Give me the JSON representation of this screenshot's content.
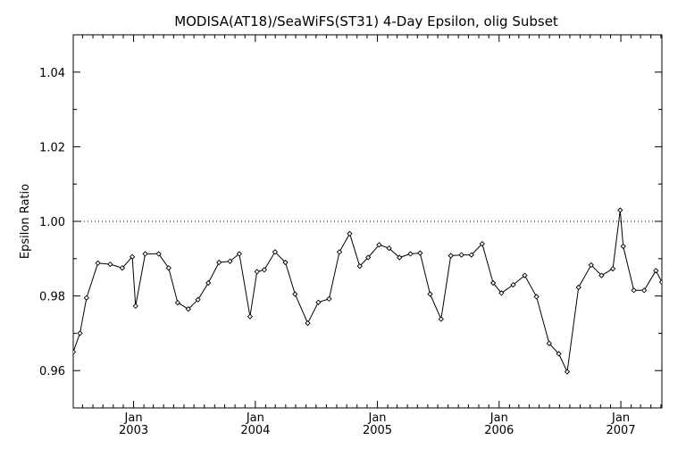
{
  "chart_data": {
    "type": "line",
    "title": "MODISA(AT18)/SeaWiFS(ST31) 4-Day Epsilon, olig Subset",
    "xlabel": "",
    "ylabel": "Epsilon Ratio",
    "x_start": "2002-07-04",
    "x_end": "2007-05-04",
    "ylim": [
      0.95,
      1.05
    ],
    "y_ticks": [
      0.96,
      0.98,
      1.0,
      1.02,
      1.04
    ],
    "y_tick_labels": [
      "0.96",
      "0.98",
      "1.00",
      "1.02",
      "1.04"
    ],
    "x_ticks": [
      {
        "date": "2003-01-01",
        "month": "Jan",
        "year": "2003"
      },
      {
        "date": "2004-01-01",
        "month": "Jan",
        "year": "2004"
      },
      {
        "date": "2005-01-01",
        "month": "Jan",
        "year": "2005"
      },
      {
        "date": "2006-01-01",
        "month": "Jan",
        "year": "2006"
      },
      {
        "date": "2007-01-01",
        "month": "Jan",
        "year": "2007"
      }
    ],
    "reference_line": {
      "y": 1.0,
      "style": "dotted"
    },
    "marker": "diamond",
    "series": [
      {
        "x": [
          "2002-07-04",
          "2002-07-24",
          "2002-08-13",
          "2002-09-16",
          "2002-10-23",
          "2002-11-28",
          "2002-12-28",
          "2003-01-07",
          "2003-02-05",
          "2003-03-17",
          "2003-04-16",
          "2003-05-13",
          "2003-06-14",
          "2003-07-13",
          "2003-08-13",
          "2003-09-14",
          "2003-10-17",
          "2003-11-14",
          "2003-12-16",
          "2004-01-06",
          "2004-01-28",
          "2004-02-29",
          "2004-03-31",
          "2004-04-29",
          "2004-06-06",
          "2004-07-08",
          "2004-08-09",
          "2004-09-09",
          "2004-10-10",
          "2004-11-09",
          "2004-12-04",
          "2005-01-06",
          "2005-02-05",
          "2005-03-08",
          "2005-04-10",
          "2005-05-09",
          "2005-06-08",
          "2005-07-11",
          "2005-08-09",
          "2005-09-10",
          "2005-10-10",
          "2005-11-11",
          "2005-12-14",
          "2006-01-08",
          "2006-02-12",
          "2006-03-19",
          "2006-04-23",
          "2006-05-31",
          "2006-06-29",
          "2006-07-24",
          "2006-08-27",
          "2006-10-04",
          "2006-11-04",
          "2006-12-08",
          "2006-12-30",
          "2007-01-08",
          "2007-02-09",
          "2007-03-12",
          "2007-04-16",
          "2007-05-04"
        ],
        "y": [
          0.965,
          0.97,
          0.9795,
          0.9888,
          0.9885,
          0.9875,
          0.9905,
          0.9773,
          0.9913,
          0.9913,
          0.9875,
          0.9782,
          0.9765,
          0.979,
          0.9835,
          0.989,
          0.9893,
          0.9913,
          0.9745,
          0.9865,
          0.987,
          0.9918,
          0.989,
          0.9805,
          0.9727,
          0.9783,
          0.9792,
          0.9918,
          0.9967,
          0.988,
          0.9903,
          0.9937,
          0.9928,
          0.9903,
          0.9913,
          0.9915,
          0.9805,
          0.9738,
          0.9908,
          0.991,
          0.991,
          0.994,
          0.9835,
          0.9808,
          0.983,
          0.9855,
          0.9798,
          0.9673,
          0.9645,
          0.9597,
          0.9823,
          0.9883,
          0.9855,
          0.9873,
          1.003,
          0.9933,
          0.9815,
          0.9815,
          0.9868,
          0.9837
        ]
      }
    ]
  }
}
